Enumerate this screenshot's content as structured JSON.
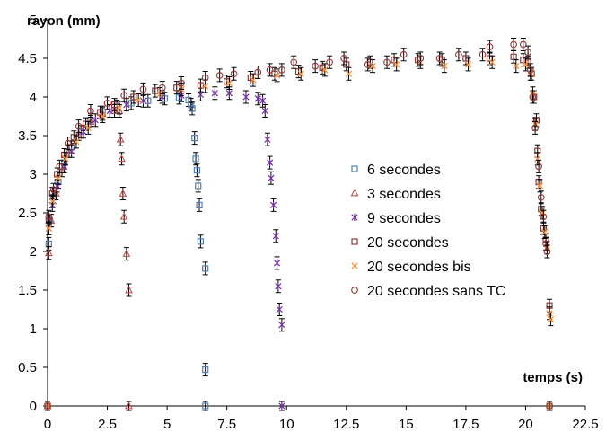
{
  "chart_data": {
    "type": "scatter",
    "title": "",
    "ylabel": "rayon (mm)",
    "xlabel": "temps (s)",
    "xlim": [
      0,
      22.5
    ],
    "ylim": [
      0,
      5
    ],
    "x_ticks": [
      "0",
      "2.5",
      "5",
      "7.5",
      "10",
      "12.5",
      "15",
      "17.5",
      "20",
      "22.5"
    ],
    "y_ticks": [
      "0",
      "0.5",
      "1",
      "1.5",
      "2",
      "2.5",
      "3",
      "3.5",
      "4",
      "4.5",
      "5"
    ],
    "grid": false,
    "error_bars": true,
    "legend_position": "center-right",
    "series": [
      {
        "name": "6 secondes",
        "marker": "square",
        "color": "#4F81BD",
        "points": [
          [
            0.05,
            2.1
          ],
          [
            0.1,
            2.4
          ],
          [
            0.25,
            2.7
          ],
          [
            0.45,
            2.9
          ],
          [
            0.7,
            3.15
          ],
          [
            1.0,
            3.35
          ],
          [
            1.4,
            3.55
          ],
          [
            1.8,
            3.7
          ],
          [
            2.3,
            3.8
          ],
          [
            2.9,
            3.88
          ],
          [
            3.5,
            3.92
          ],
          [
            4.2,
            3.95
          ],
          [
            4.9,
            3.98
          ],
          [
            5.5,
            3.99
          ],
          [
            5.9,
            3.96
          ],
          [
            6.0,
            3.9
          ],
          [
            6.05,
            3.85
          ],
          [
            6.15,
            3.47
          ],
          [
            6.2,
            3.2
          ],
          [
            6.25,
            3.05
          ],
          [
            6.3,
            2.85
          ],
          [
            6.35,
            2.6
          ],
          [
            6.4,
            2.13
          ],
          [
            6.6,
            1.78
          ],
          [
            6.6,
            0.47
          ],
          [
            6.6,
            0.0
          ],
          [
            0.0,
            0.0
          ]
        ]
      },
      {
        "name": "3 secondes",
        "marker": "triangle",
        "color": "#C0504D",
        "points": [
          [
            0.05,
            1.98
          ],
          [
            0.15,
            2.4
          ],
          [
            0.35,
            2.75
          ],
          [
            0.6,
            3.05
          ],
          [
            0.9,
            3.3
          ],
          [
            1.3,
            3.52
          ],
          [
            1.8,
            3.68
          ],
          [
            2.3,
            3.78
          ],
          [
            2.8,
            3.82
          ],
          [
            3.0,
            3.82
          ],
          [
            3.05,
            3.45
          ],
          [
            3.1,
            3.2
          ],
          [
            3.15,
            2.75
          ],
          [
            3.2,
            2.45
          ],
          [
            3.3,
            1.97
          ],
          [
            3.4,
            1.5
          ],
          [
            3.4,
            0.0
          ],
          [
            0.0,
            0.0
          ]
        ]
      },
      {
        "name": "9 secondes",
        "marker": "asterisk",
        "color": "#7030A0",
        "points": [
          [
            0.05,
            2.3
          ],
          [
            0.2,
            2.6
          ],
          [
            0.4,
            2.85
          ],
          [
            0.7,
            3.1
          ],
          [
            1.0,
            3.3
          ],
          [
            1.5,
            3.55
          ],
          [
            2.0,
            3.7
          ],
          [
            2.6,
            3.82
          ],
          [
            3.3,
            3.9
          ],
          [
            4.0,
            3.95
          ],
          [
            4.8,
            4.0
          ],
          [
            5.6,
            4.02
          ],
          [
            6.4,
            4.03
          ],
          [
            7.0,
            4.05
          ],
          [
            7.6,
            4.05
          ],
          [
            8.3,
            4.0
          ],
          [
            8.8,
            3.98
          ],
          [
            9.0,
            3.95
          ],
          [
            9.1,
            3.82
          ],
          [
            9.2,
            3.45
          ],
          [
            9.3,
            3.15
          ],
          [
            9.35,
            2.95
          ],
          [
            9.45,
            2.6
          ],
          [
            9.55,
            2.2
          ],
          [
            9.6,
            1.85
          ],
          [
            9.65,
            1.55
          ],
          [
            9.7,
            1.25
          ],
          [
            9.8,
            1.05
          ],
          [
            9.8,
            0.0
          ],
          [
            0.0,
            0.0
          ]
        ]
      },
      {
        "name": "20 secondes",
        "marker": "square",
        "color": "#943634",
        "points": [
          [
            0.05,
            2.4
          ],
          [
            0.2,
            2.75
          ],
          [
            0.4,
            3.0
          ],
          [
            0.7,
            3.25
          ],
          [
            1.1,
            3.48
          ],
          [
            1.6,
            3.65
          ],
          [
            2.2,
            3.8
          ],
          [
            2.8,
            3.9
          ],
          [
            3.6,
            4.0
          ],
          [
            4.5,
            4.08
          ],
          [
            5.4,
            4.12
          ],
          [
            6.4,
            4.15
          ],
          [
            7.5,
            4.2
          ],
          [
            8.5,
            4.25
          ],
          [
            9.5,
            4.3
          ],
          [
            10.5,
            4.33
          ],
          [
            11.5,
            4.38
          ],
          [
            12.5,
            4.42
          ],
          [
            13.5,
            4.45
          ],
          [
            14.5,
            4.48
          ],
          [
            15.5,
            4.48
          ],
          [
            16.5,
            4.48
          ],
          [
            17.5,
            4.5
          ],
          [
            18.5,
            4.5
          ],
          [
            19.5,
            4.52
          ],
          [
            19.9,
            4.48
          ],
          [
            20.1,
            4.45
          ],
          [
            20.25,
            4.3
          ],
          [
            20.35,
            4.0
          ],
          [
            20.45,
            3.7
          ],
          [
            20.5,
            3.3
          ],
          [
            20.55,
            2.9
          ],
          [
            20.65,
            2.55
          ],
          [
            20.75,
            2.3
          ],
          [
            20.85,
            2.15
          ],
          [
            21.0,
            1.3
          ],
          [
            21.0,
            0.0
          ],
          [
            0.0,
            0.0
          ]
        ]
      },
      {
        "name": "20 secondes bis",
        "marker": "cross",
        "color": "#F79646",
        "points": [
          [
            0.05,
            2.3
          ],
          [
            0.2,
            2.65
          ],
          [
            0.45,
            2.95
          ],
          [
            0.75,
            3.2
          ],
          [
            1.2,
            3.42
          ],
          [
            1.7,
            3.6
          ],
          [
            2.3,
            3.75
          ],
          [
            3.0,
            3.86
          ],
          [
            3.8,
            3.96
          ],
          [
            4.7,
            4.04
          ],
          [
            5.6,
            4.1
          ],
          [
            6.6,
            4.14
          ],
          [
            7.6,
            4.18
          ],
          [
            8.6,
            4.22
          ],
          [
            9.6,
            4.28
          ],
          [
            10.6,
            4.3
          ],
          [
            11.6,
            4.35
          ],
          [
            12.6,
            4.3
          ],
          [
            13.6,
            4.4
          ],
          [
            14.6,
            4.42
          ],
          [
            15.6,
            4.45
          ],
          [
            16.6,
            4.4
          ],
          [
            17.6,
            4.42
          ],
          [
            18.6,
            4.45
          ],
          [
            19.6,
            4.4
          ],
          [
            20.0,
            4.42
          ],
          [
            20.2,
            4.3
          ],
          [
            20.3,
            4.05
          ],
          [
            20.4,
            3.65
          ],
          [
            20.5,
            3.2
          ],
          [
            20.6,
            2.85
          ],
          [
            20.7,
            2.5
          ],
          [
            20.8,
            2.25
          ],
          [
            20.9,
            2.05
          ],
          [
            21.0,
            1.2
          ],
          [
            21.05,
            1.12
          ],
          [
            21.0,
            0.0
          ],
          [
            0.0,
            0.0
          ]
        ]
      },
      {
        "name": "20 secondes sans TC",
        "marker": "circle",
        "color": "#943634",
        "points": [
          [
            0.05,
            2.45
          ],
          [
            0.25,
            2.8
          ],
          [
            0.5,
            3.1
          ],
          [
            0.85,
            3.4
          ],
          [
            1.3,
            3.62
          ],
          [
            1.8,
            3.82
          ],
          [
            2.5,
            3.92
          ],
          [
            3.2,
            4.02
          ],
          [
            4.0,
            4.1
          ],
          [
            4.8,
            4.12
          ],
          [
            5.6,
            4.18
          ],
          [
            6.6,
            4.25
          ],
          [
            7.2,
            4.28
          ],
          [
            7.8,
            4.3
          ],
          [
            8.8,
            4.32
          ],
          [
            9.3,
            4.35
          ],
          [
            9.8,
            4.35
          ],
          [
            10.3,
            4.45
          ],
          [
            11.2,
            4.4
          ],
          [
            11.8,
            4.45
          ],
          [
            12.4,
            4.5
          ],
          [
            13.4,
            4.42
          ],
          [
            14.2,
            4.45
          ],
          [
            14.9,
            4.55
          ],
          [
            15.6,
            4.5
          ],
          [
            16.4,
            4.5
          ],
          [
            17.2,
            4.55
          ],
          [
            18.2,
            4.55
          ],
          [
            18.5,
            4.65
          ],
          [
            19.5,
            4.68
          ],
          [
            19.9,
            4.68
          ],
          [
            20.1,
            4.58
          ],
          [
            20.2,
            4.35
          ],
          [
            20.3,
            4.0
          ],
          [
            20.4,
            3.6
          ],
          [
            20.55,
            3.1
          ],
          [
            20.65,
            2.7
          ],
          [
            20.75,
            2.45
          ],
          [
            20.85,
            2.1
          ],
          [
            20.9,
            2.0
          ],
          [
            21.0,
            0.0
          ],
          [
            0.0,
            0.0
          ]
        ]
      }
    ]
  }
}
